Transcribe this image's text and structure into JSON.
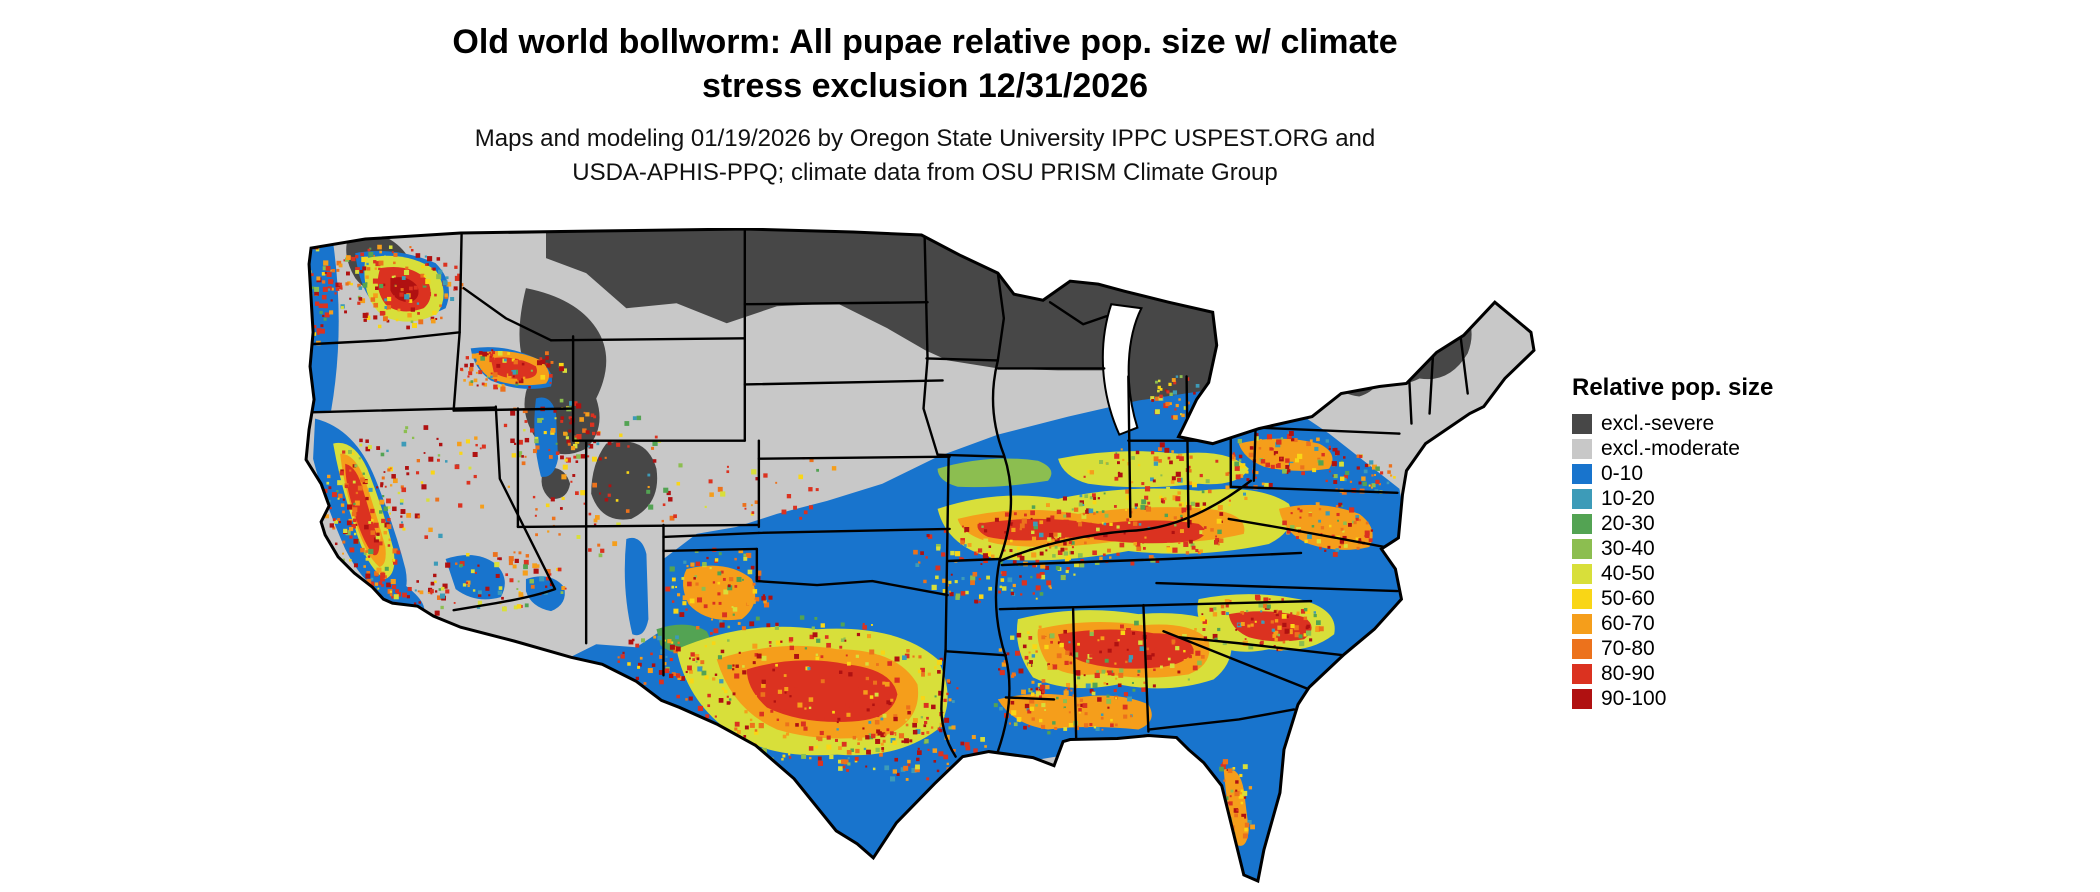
{
  "title": {
    "line1": "Old world bollworm: All pupae relative pop. size w/ climate",
    "line2": "stress exclusion 12/31/2026"
  },
  "subtitle": {
    "line1": "Maps and modeling 01/19/2026 by Oregon State University IPPC USPEST.ORG and",
    "line2": "USDA-APHIS-PPQ; climate data from OSU PRISM Climate Group"
  },
  "legend": {
    "title": "Relative pop. size",
    "entries": [
      {
        "label": "excl.-severe",
        "color": "#474747"
      },
      {
        "label": "excl.-moderate",
        "color": "#C8C8C8"
      },
      {
        "label": "0-10",
        "color": "#1874CD"
      },
      {
        "label": "10-20",
        "color": "#3D9BB8"
      },
      {
        "label": "20-30",
        "color": "#53A353"
      },
      {
        "label": "30-40",
        "color": "#8CBE50"
      },
      {
        "label": "40-50",
        "color": "#D8DF3A"
      },
      {
        "label": "50-60",
        "color": "#F9D616"
      },
      {
        "label": "60-70",
        "color": "#F59E1B"
      },
      {
        "label": "70-80",
        "color": "#EC721C"
      },
      {
        "label": "80-90",
        "color": "#DB3220"
      },
      {
        "label": "90-100",
        "color": "#B01111"
      }
    ]
  }
}
